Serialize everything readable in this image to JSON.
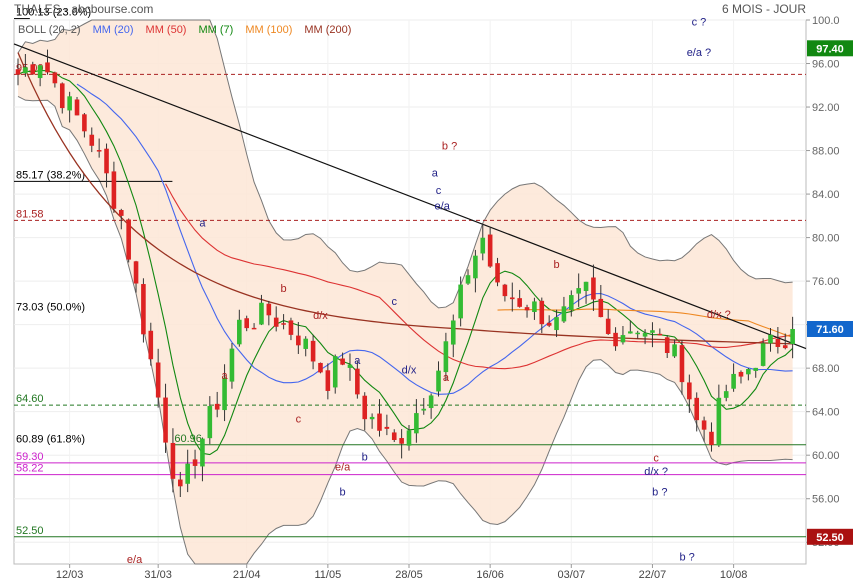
{
  "header": {
    "instrument": "THALES - abcbourse.com",
    "period": "6 MOIS - JOUR"
  },
  "legend": [
    {
      "label": "BOLL (20, 2)",
      "color": "#555555"
    },
    {
      "label": "MM (20)",
      "color": "#4466ee"
    },
    {
      "label": "MM (50)",
      "color": "#dd3333"
    },
    {
      "label": "MM (7)",
      "color": "#118811"
    },
    {
      "label": "MM (100)",
      "color": "#ee8822"
    },
    {
      "label": "MM (200)",
      "color": "#993322"
    }
  ],
  "chart_data": {
    "type": "candlestick",
    "ylim": [
      50,
      100
    ],
    "y_ticks": [
      "100.0",
      "96.00",
      "92.00",
      "88.00",
      "84.00",
      "80.00",
      "76.00",
      "72.00",
      "68.00",
      "64.00",
      "60.00",
      "56.00",
      "52.00"
    ],
    "x_ticks": [
      "12/03",
      "31/03",
      "21/04",
      "11/05",
      "28/05",
      "16/06",
      "03/07",
      "22/07",
      "10/08"
    ],
    "price_badges": [
      {
        "label": "97.40",
        "value": 97.4,
        "color": "#118811"
      },
      {
        "label": "71.60",
        "value": 71.6,
        "color": "#1166cc"
      },
      {
        "label": "52.50",
        "value": 52.5,
        "color": "#aa1111"
      }
    ],
    "levels": [
      {
        "label": "100.13 (23.6%)",
        "value": 100.13,
        "color": "#000000",
        "style": "solid",
        "x0": 0.0,
        "x1": 0.02
      },
      {
        "label": "95.00",
        "value": 95.0,
        "color": "#aa2222",
        "style": "dash",
        "x0": 0.0,
        "x1": 1.0
      },
      {
        "label": "85.17 (38.2%)",
        "value": 85.17,
        "color": "#000000",
        "style": "solid",
        "x0": 0.0,
        "x1": 0.2
      },
      {
        "label": "81.58",
        "value": 81.58,
        "color": "#aa2222",
        "style": "dash",
        "x0": 0.0,
        "x1": 1.0
      },
      {
        "label": "73.03 (50.0%)",
        "value": 73.03,
        "color": "#000000",
        "style": "none",
        "x0": 0.0,
        "x1": 0.0
      },
      {
        "label": "64.60",
        "value": 64.6,
        "color": "#227722",
        "style": "dash",
        "x0": 0.0,
        "x1": 1.0
      },
      {
        "label": "60.96",
        "value": 60.96,
        "color": "#227722",
        "style": "solid",
        "x0": 0.2,
        "x1": 1.0
      },
      {
        "label": "60.89 (61.8%)",
        "value": 60.89,
        "color": "#000000",
        "style": "none",
        "x0": 0.0,
        "x1": 0.0
      },
      {
        "label": "59.30",
        "value": 59.3,
        "color": "#cc22cc",
        "style": "solid",
        "x0": 0.0,
        "x1": 1.0
      },
      {
        "label": "58.22",
        "value": 58.22,
        "color": "#cc22cc",
        "style": "solid",
        "x0": 0.0,
        "x1": 1.0
      },
      {
        "label": "52.50",
        "value": 52.5,
        "color": "#227722",
        "style": "solid",
        "x0": 0.0,
        "x1": 1.0
      }
    ],
    "trendline": {
      "i0": 0,
      "v0": 97.8,
      "i1": 105,
      "v1": 69.8
    },
    "annotations": [
      {
        "text": "a",
        "i": 25,
        "v": 81.0,
        "color": "#222288",
        "size": 13
      },
      {
        "text": "b",
        "i": 36,
        "v": 75.0,
        "color": "#aa2222",
        "size": 11
      },
      {
        "text": "a",
        "i": 28,
        "v": 67.0,
        "color": "#aa2222",
        "size": 11
      },
      {
        "text": "c",
        "i": 38,
        "v": 63.0,
        "color": "#aa2222",
        "size": 11
      },
      {
        "text": "d/x",
        "i": 41,
        "v": 72.5,
        "color": "#aa2222",
        "size": 11
      },
      {
        "text": "a",
        "i": 46,
        "v": 68.4,
        "color": "#222288",
        "size": 11
      },
      {
        "text": "b",
        "i": 47,
        "v": 59.5,
        "color": "#222288",
        "size": 11
      },
      {
        "text": "e/a",
        "i": 44,
        "v": 58.6,
        "color": "#aa2222",
        "size": 11
      },
      {
        "text": "b",
        "i": 44,
        "v": 56.3,
        "color": "#222288",
        "size": 12
      },
      {
        "text": "c",
        "i": 51,
        "v": 73.8,
        "color": "#222288",
        "size": 11
      },
      {
        "text": "d/x",
        "i": 53,
        "v": 67.5,
        "color": "#222288",
        "size": 11
      },
      {
        "text": "a",
        "i": 58,
        "v": 66.8,
        "color": "#aa2222",
        "size": 11
      },
      {
        "text": "b ?",
        "i": 58.5,
        "v": 88.1,
        "color": "#aa2222",
        "size": 16
      },
      {
        "text": "a",
        "i": 56.5,
        "v": 85.6,
        "color": "#222288",
        "size": 15
      },
      {
        "text": "c",
        "i": 57,
        "v": 84.0,
        "color": "#222288",
        "size": 12
      },
      {
        "text": "e/a",
        "i": 57.5,
        "v": 82.6,
        "color": "#222288",
        "size": 10
      },
      {
        "text": "b",
        "i": 73,
        "v": 77.2,
        "color": "#aa2222",
        "size": 11
      },
      {
        "text": "c",
        "i": 86.5,
        "v": 59.4,
        "color": "#aa2222",
        "size": 11
      },
      {
        "text": "d/x ?",
        "i": 86.5,
        "v": 58.2,
        "color": "#222288",
        "size": 13
      },
      {
        "text": "b ?",
        "i": 87,
        "v": 56.3,
        "color": "#222288",
        "size": 15
      },
      {
        "text": "d/x ?",
        "i": 95,
        "v": 72.6,
        "color": "#aa2222",
        "size": 11
      },
      {
        "text": "c ?",
        "i": 92.3,
        "v": 99.5,
        "color": "#222288",
        "size": 15
      },
      {
        "text": "e/a ?",
        "i": 92.3,
        "v": 96.7,
        "color": "#222288",
        "size": 12
      },
      {
        "text": "e/a",
        "i": 15.8,
        "v": 50.1,
        "color": "#aa2222",
        "size": 17
      },
      {
        "text": "b ?",
        "i": 90.7,
        "v": 50.3,
        "color": "#222288",
        "size": 15
      }
    ]
  }
}
